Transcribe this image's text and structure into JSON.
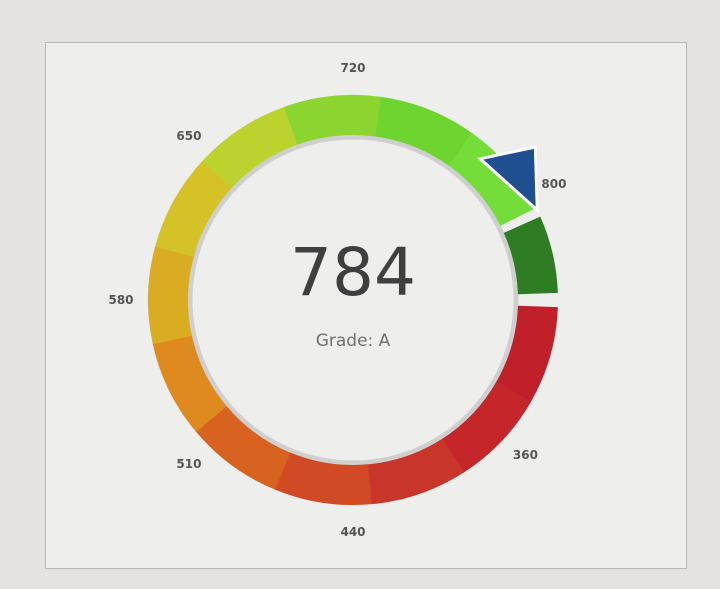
{
  "gauge": {
    "score": "784",
    "grade_text": "Grade: A",
    "colors": {
      "pointer": "#1f4f8f",
      "gap_track": "#cfcfcf"
    }
  },
  "chart_data": {
    "type": "gauge",
    "value": 784,
    "tick_labels": [
      "360",
      "440",
      "510",
      "580",
      "650",
      "720",
      "800"
    ],
    "segments": [
      "#c0202a",
      "#c4262a",
      "#c8352a",
      "#d04a25",
      "#d8621f",
      "#de8a1e",
      "#d9ac22",
      "#d4c228",
      "#bcd22e",
      "#8cd430",
      "#6ed430",
      "#74dd3a",
      "#2e7d22"
    ]
  }
}
